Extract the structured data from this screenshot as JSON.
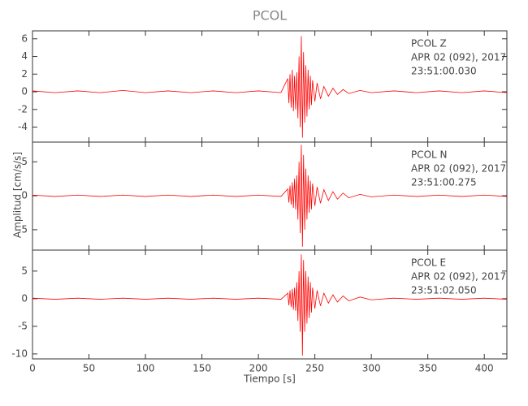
{
  "title": "PCOL",
  "y_label": "Amplitud [cm/s/s]",
  "x_label": "Tiempo [s]",
  "chart_data": [
    {
      "type": "line",
      "color": "#ff0000",
      "annotations": [
        "PCOL   Z",
        "APR 02 (092), 2017",
        "23:51:00.030"
      ],
      "xlim": [
        0,
        420
      ],
      "ylim": [
        -5.7,
        6.9
      ],
      "yticks": [
        -4,
        -2,
        0,
        2,
        4,
        6
      ],
      "x": [
        0,
        20,
        40,
        60,
        80,
        100,
        120,
        140,
        160,
        180,
        200,
        220,
        226,
        227,
        228,
        229,
        230,
        231,
        232,
        233,
        234,
        235,
        236,
        237,
        238,
        239,
        240,
        241,
        242,
        243,
        244,
        245,
        246,
        247,
        248,
        250,
        252,
        255,
        258,
        262,
        266,
        270,
        275,
        280,
        290,
        300,
        320,
        340,
        360,
        380,
        400,
        420
      ],
      "values": [
        0.1,
        -0.1,
        0.1,
        -0.1,
        0.15,
        -0.1,
        0.1,
        -0.1,
        0.1,
        -0.1,
        0.1,
        -0.1,
        1.5,
        -1.3,
        2.0,
        -1.8,
        2.5,
        -2.2,
        1.8,
        -2.0,
        2.2,
        -3.0,
        4.0,
        -4.0,
        6.3,
        -5.2,
        4.5,
        -3.5,
        3.0,
        -2.8,
        2.5,
        -2.0,
        1.8,
        -1.5,
        1.3,
        -1.1,
        1.0,
        -0.8,
        0.6,
        -0.5,
        0.4,
        -0.3,
        0.25,
        -0.2,
        0.15,
        -0.1,
        0.1,
        -0.1,
        0.1,
        -0.1,
        0.1,
        -0.1
      ]
    },
    {
      "type": "line",
      "color": "#ff0000",
      "annotations": [
        "PCOL   N",
        "APR 02 (092), 2017",
        "23:51:00.275"
      ],
      "xlim": [
        0,
        420
      ],
      "ylim": [
        -8,
        7.9
      ],
      "yticks": [
        -5,
        0,
        5
      ],
      "x": [
        0,
        20,
        40,
        60,
        80,
        100,
        120,
        140,
        160,
        180,
        200,
        220,
        226,
        227,
        228,
        229,
        230,
        231,
        232,
        233,
        234,
        235,
        236,
        237,
        238,
        239,
        240,
        241,
        242,
        243,
        244,
        245,
        246,
        247,
        248,
        250,
        252,
        255,
        258,
        262,
        266,
        270,
        275,
        280,
        290,
        300,
        320,
        340,
        360,
        380,
        400,
        420
      ],
      "values": [
        0.1,
        -0.1,
        0.1,
        -0.1,
        0.1,
        -0.1,
        0.1,
        -0.1,
        0.1,
        -0.1,
        0.1,
        -0.1,
        1.0,
        -1.0,
        1.5,
        -1.3,
        2.0,
        -1.8,
        2.5,
        -2.0,
        3.0,
        -3.5,
        5.0,
        -5.5,
        7.5,
        -7.5,
        6.0,
        -5.0,
        4.0,
        -3.5,
        3.0,
        -2.5,
        2.2,
        -2.0,
        1.8,
        -1.5,
        1.3,
        -1.1,
        0.9,
        -0.7,
        0.6,
        -0.5,
        0.4,
        -0.3,
        0.2,
        -0.15,
        0.1,
        -0.1,
        0.1,
        -0.1,
        0.1,
        -0.1
      ]
    },
    {
      "type": "line",
      "color": "#ff0000",
      "annotations": [
        "PCOL   E",
        "APR 02 (092), 2017",
        "23:51:02.050"
      ],
      "xlim": [
        0,
        420
      ],
      "ylim": [
        -10.9,
        8.8
      ],
      "yticks": [
        -10,
        -5,
        0,
        5
      ],
      "xticks": [
        0,
        50,
        100,
        150,
        200,
        250,
        300,
        350,
        400
      ],
      "x": [
        0,
        20,
        40,
        60,
        80,
        100,
        120,
        140,
        160,
        180,
        200,
        220,
        226,
        227,
        228,
        229,
        230,
        231,
        232,
        233,
        234,
        235,
        236,
        237,
        238,
        239,
        240,
        241,
        242,
        243,
        244,
        245,
        246,
        247,
        248,
        250,
        252,
        255,
        258,
        262,
        266,
        270,
        275,
        280,
        290,
        300,
        320,
        340,
        360,
        380,
        400,
        420
      ],
      "values": [
        0.1,
        -0.1,
        0.1,
        -0.1,
        0.1,
        -0.1,
        0.1,
        -0.1,
        0.1,
        -0.1,
        0.1,
        -0.1,
        1.0,
        -1.2,
        1.5,
        -1.5,
        1.8,
        -2.0,
        2.0,
        -2.2,
        3.0,
        -4.0,
        5.0,
        -6.0,
        8.0,
        -10.3,
        7.0,
        -6.0,
        5.0,
        -4.5,
        4.0,
        -3.5,
        3.0,
        -2.5,
        2.0,
        -1.8,
        1.5,
        -1.3,
        1.0,
        -0.8,
        0.7,
        -0.6,
        0.5,
        -0.4,
        0.3,
        -0.2,
        0.1,
        -0.1,
        0.1,
        -0.1,
        0.1,
        -0.1
      ]
    }
  ]
}
